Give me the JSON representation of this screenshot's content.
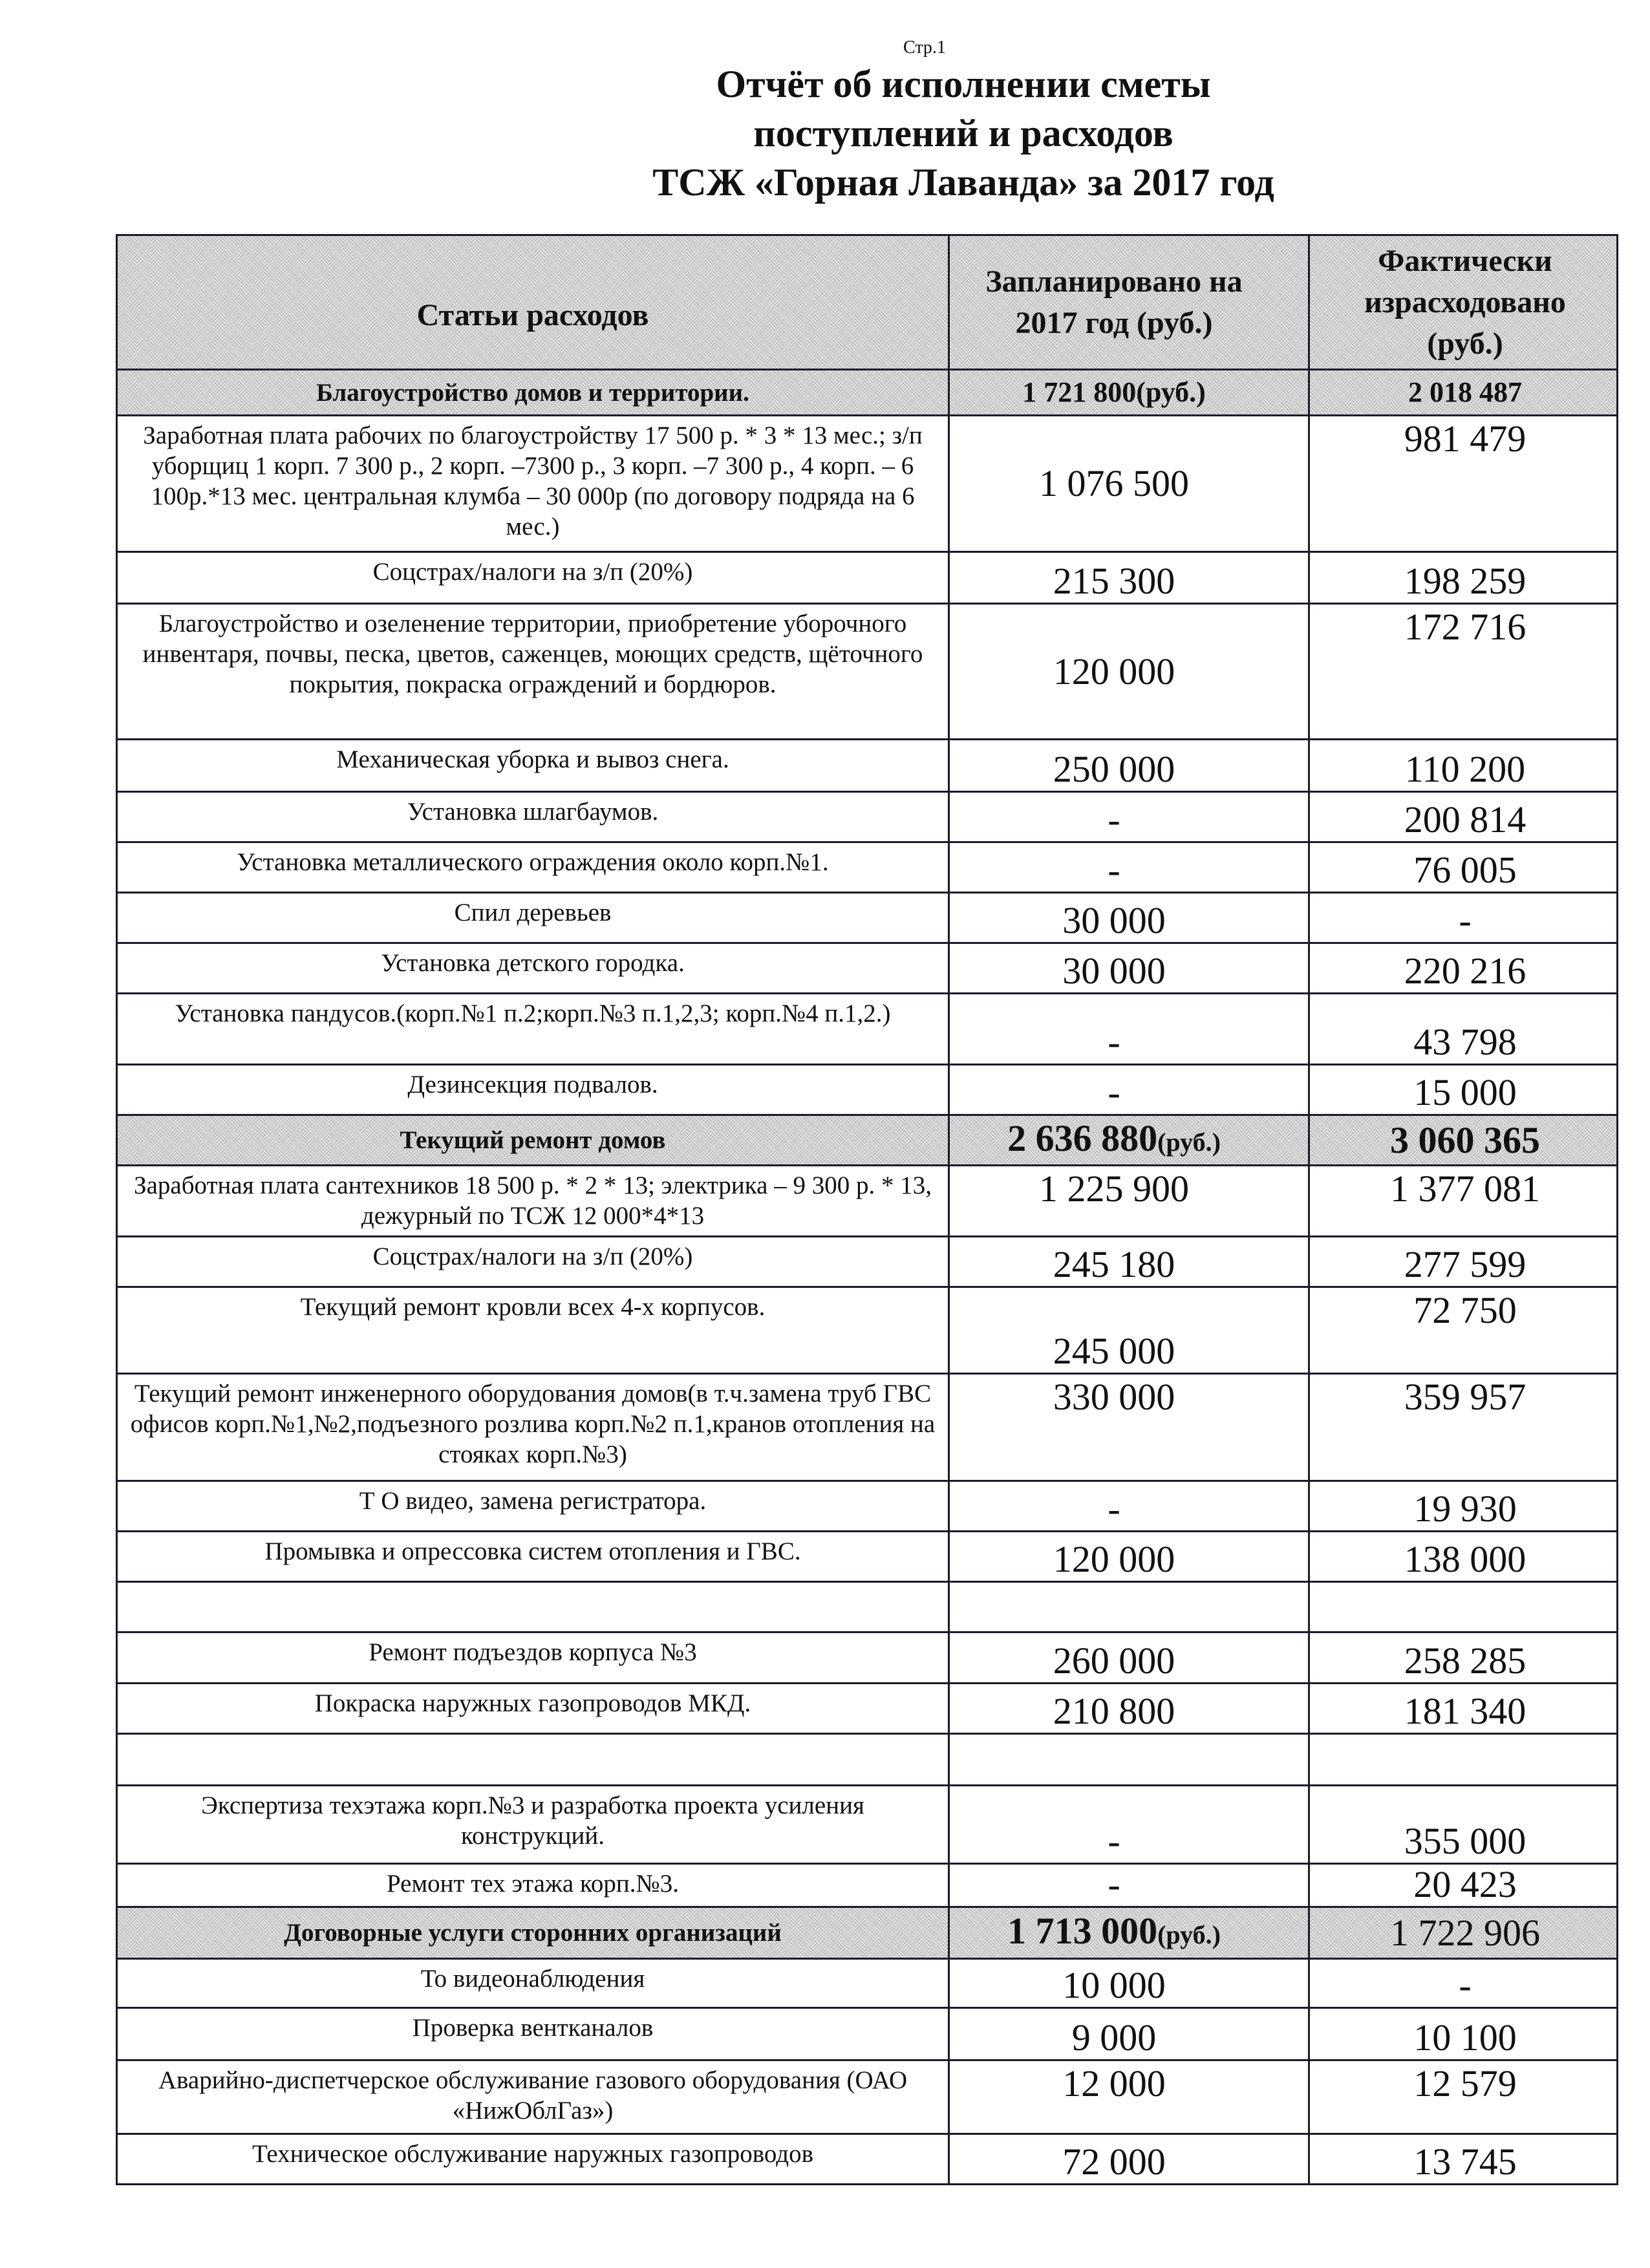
{
  "page_label": "Стр.1",
  "title_lines": [
    "Отчёт об исполнении сметы",
    "поступлений и расходов",
    "ТСЖ «Горная Лаванда» за 2017 год"
  ],
  "table": {
    "headers": [
      "Статьи расходов",
      "Запланировано на 2017 год (руб.)",
      "Фактически израсходовано (руб.)"
    ],
    "rows": [
      {
        "type": "section",
        "item": "Благоустройство домов и территории.",
        "planned": "1 721 800",
        "planned_unit": "(руб.)",
        "actual": "2 018 487",
        "actual_unit": ""
      },
      {
        "type": "row",
        "item": "Заработная плата рабочих по благоустройству 17 500 р. * 3 * 13 мес.; з/п уборщиц 1 корп. 7 300 р., 2 корп. –7300 р., 3 корп. –7 300 р., 4 корп. – 6 100р.*13 мес. центральная клумба – 30 000р (по договору подряда на 6 мес.)",
        "planned": "1 076 500",
        "actual": "981 479"
      },
      {
        "type": "row",
        "item": "Соцстрах/налоги на з/п (20%)",
        "planned": "215 300",
        "actual": "198 259"
      },
      {
        "type": "row",
        "item": "Благоустройство и озеленение территории, приобретение уборочного инвентаря, почвы, песка, цветов, саженцев, моющих средств, щёточного покрытия, покраска ограждений и бордюров.",
        "planned": "120 000",
        "actual": "172 716"
      },
      {
        "type": "row",
        "item": "Механическая уборка и вывоз снега.",
        "planned": "250 000",
        "actual": "110 200"
      },
      {
        "type": "row",
        "item": "Установка шлагбаумов.",
        "planned": "-",
        "actual": "200 814"
      },
      {
        "type": "row",
        "item": "Установка металлического ограждения около корп.№1.",
        "planned": "-",
        "actual": "76 005"
      },
      {
        "type": "row",
        "item": "Спил деревьев",
        "planned": "30 000",
        "actual": "-"
      },
      {
        "type": "row",
        "item": "Установка детского городка.",
        "planned": "30 000",
        "actual": "220 216"
      },
      {
        "type": "row",
        "item": "Установка пандусов.(корп.№1 п.2;корп.№3 п.1,2,3; корп.№4 п.1,2.)",
        "planned": "-",
        "actual": "43 798"
      },
      {
        "type": "row",
        "item": "Дезинсекция подвалов.",
        "planned": "-",
        "actual": "15 000"
      },
      {
        "type": "section",
        "item": "Текущий ремонт домов",
        "planned": "2 636 880",
        "planned_unit": "(руб.)",
        "actual": "3 060 365",
        "actual_unit": ""
      },
      {
        "type": "row",
        "item": "Заработная плата сантехников 18 500 р. * 2 * 13;  электрика – 9 300 р. * 13, дежурный по ТСЖ 12 000*4*13",
        "planned": "1 225 900",
        "actual": "1 377 081"
      },
      {
        "type": "row",
        "item": "Соцстрах/налоги на з/п (20%)",
        "planned": "245 180",
        "actual": "277 599"
      },
      {
        "type": "row",
        "item": "Текущий ремонт кровли всех 4-х корпусов.",
        "planned": "245 000",
        "actual": "72 750"
      },
      {
        "type": "row",
        "item": "Текущий ремонт инженерного оборудования домов(в т.ч.замена труб ГВС офисов корп.№1,№2,подъезного розлива корп.№2 п.1,кранов отопления на стояках корп.№3)",
        "planned": "330 000",
        "actual": "359 957"
      },
      {
        "type": "row",
        "item": "Т О видео, замена регистратора.",
        "planned": "-",
        "actual": "19 930"
      },
      {
        "type": "row",
        "item": "Промывка и опрессовка систем отопления и ГВС.",
        "planned": "120 000",
        "actual": "138 000"
      },
      {
        "type": "row",
        "item": "",
        "planned": "",
        "actual": ""
      },
      {
        "type": "row",
        "item": "Ремонт  подъездов корпуса №3",
        "planned": "260 000",
        "actual": "258 285"
      },
      {
        "type": "row",
        "item": "Покраска наружных газопроводов МКД.",
        "planned": "210 800",
        "actual": "181 340"
      },
      {
        "type": "row",
        "item": "",
        "planned": "",
        "actual": ""
      },
      {
        "type": "row",
        "item": "Экспертиза техэтажа корп.№3 и разработка проекта усиления конструкций.",
        "planned": "-",
        "actual": "355 000"
      },
      {
        "type": "row",
        "item": "Ремонт тех этажа корп.№3.",
        "planned": "-",
        "actual": "20 423"
      },
      {
        "type": "section",
        "item": "Договорные услуги сторонних организаций",
        "planned": "1 713 000",
        "planned_unit": "(руб.)",
        "actual": "1 722 906",
        "actual_unit": ""
      },
      {
        "type": "row",
        "item": "То видеонаблюдения",
        "planned": "10 000",
        "actual": "-"
      },
      {
        "type": "row",
        "item": "Проверка вентканалов",
        "planned": "9 000",
        "actual": "10 100"
      },
      {
        "type": "row",
        "item": "Аварийно-диспетчерское обслуживание газового оборудования (ОАО «НижОблГаз»)",
        "planned": "12 000",
        "actual": "12 579"
      },
      {
        "type": "row",
        "item": "Техническое обслуживание наружных  газопроводов",
        "planned": "72 000",
        "actual": "13 745"
      }
    ]
  }
}
